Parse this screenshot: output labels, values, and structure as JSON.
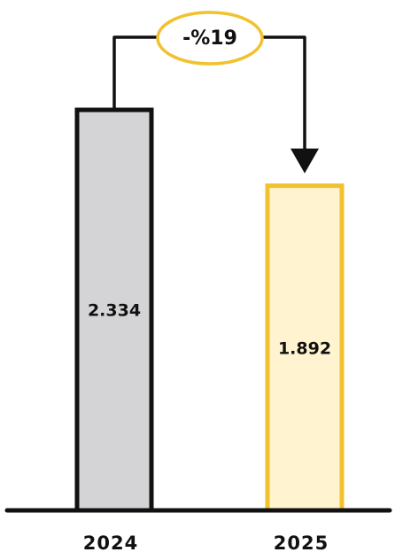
{
  "chart_data": {
    "type": "bar",
    "categories": [
      "2024",
      "2025"
    ],
    "values": [
      2334,
      1892
    ],
    "value_labels": [
      "2.334",
      "1.892"
    ],
    "change_label": "-%19",
    "bar_colors": [
      {
        "fill": "#d4d4d6",
        "stroke": "#111111"
      },
      {
        "fill": "#fff4cf",
        "stroke": "#f2c12e"
      }
    ],
    "change_badge_color": "#f2c12e",
    "axis_color": "#111111",
    "title": "",
    "xlabel": "",
    "ylabel": "",
    "grid": false,
    "legend": "none"
  }
}
